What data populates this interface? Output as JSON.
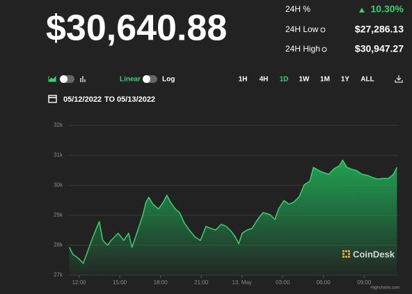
{
  "header": {
    "price": "$30,640.88",
    "stats": [
      {
        "label": "24H %",
        "value": "10.30%"
      },
      {
        "label": "24H Low",
        "value": "$27,286.13"
      },
      {
        "label": "24H High",
        "value": "$30,947.27"
      }
    ]
  },
  "controls": {
    "linear": "Linear",
    "log": "Log",
    "ranges": [
      {
        "label": "1H"
      },
      {
        "label": "4H"
      },
      {
        "label": "1D",
        "active": true
      },
      {
        "label": "1W"
      },
      {
        "label": "1M"
      },
      {
        "label": "1Y"
      },
      {
        "label": "ALL"
      }
    ]
  },
  "dates": {
    "from": "05/12/2022",
    "to_label": "TO",
    "to": "05/13/2022"
  },
  "chart_data": {
    "type": "area",
    "x": [
      11.28,
      11.54,
      11.9,
      12.31,
      12.56,
      12.92,
      13.34,
      13.49,
      13.75,
      14.1,
      14.36,
      14.62,
      14.88,
      15.29,
      15.65,
      15.9,
      16.16,
      16.42,
      16.68,
      16.93,
      17.14,
      17.44,
      17.85,
      18.21,
      18.47,
      18.73,
      19.09,
      19.4,
      19.76,
      20.12,
      20.53,
      20.94,
      21.35,
      21.71,
      22.07,
      22.48,
      22.84,
      23.2,
      23.51,
      23.76,
      24.02,
      24.38,
      24.74,
      25.15,
      25.56,
      26.07,
      26.43,
      26.69,
      27.1,
      27.46,
      27.82,
      28.23,
      28.59,
      29.0,
      29.26,
      29.67,
      30.03,
      30.39,
      30.8,
      31.16,
      31.42,
      31.73,
      32.08,
      32.44,
      32.85,
      33.26,
      33.62,
      33.98,
      34.39,
      34.8,
      35.16,
      35.42
    ],
    "series": [
      {
        "color": "#3bd16f",
        "values": [
          27930,
          27700,
          27580,
          27400,
          27700,
          28160,
          28630,
          28790,
          28160,
          28000,
          28160,
          28280,
          28400,
          28160,
          28400,
          27930,
          28280,
          28630,
          28980,
          29440,
          29600,
          29370,
          29210,
          29440,
          29670,
          29440,
          29210,
          29090,
          28740,
          28510,
          28280,
          28160,
          28630,
          28560,
          28510,
          28700,
          28630,
          28470,
          28280,
          28050,
          28400,
          28510,
          28560,
          28860,
          29090,
          29020,
          28860,
          29210,
          29490,
          29370,
          29440,
          29630,
          30020,
          30140,
          30600,
          30490,
          30420,
          30370,
          30560,
          30650,
          30840,
          30600,
          30540,
          30490,
          30370,
          30330,
          30260,
          30210,
          30230,
          30230,
          30370,
          30600
        ]
      }
    ],
    "xlim": [
      11.2,
      35.5
    ],
    "xticks": [
      {
        "value": 12,
        "label": "12:00"
      },
      {
        "value": 15,
        "label": "15:00"
      },
      {
        "value": 18,
        "label": "18:00"
      },
      {
        "value": 21,
        "label": "21:00"
      },
      {
        "value": 24,
        "label": "13. May"
      },
      {
        "value": 27,
        "label": "03:00"
      },
      {
        "value": 30,
        "label": "06:00"
      },
      {
        "value": 33,
        "label": "09:00"
      }
    ],
    "ylim": [
      27000,
      32000
    ],
    "yticks": [
      {
        "value": 27000,
        "label": "27k"
      },
      {
        "value": 28000,
        "label": "28k"
      },
      {
        "value": 29000,
        "label": "29k"
      },
      {
        "value": 30000,
        "label": "30k"
      },
      {
        "value": 31000,
        "label": "31k"
      },
      {
        "value": 32000,
        "label": "32k"
      }
    ],
    "grid": true,
    "watermark": "CoinDesk",
    "credits": "Highcharts.com"
  }
}
